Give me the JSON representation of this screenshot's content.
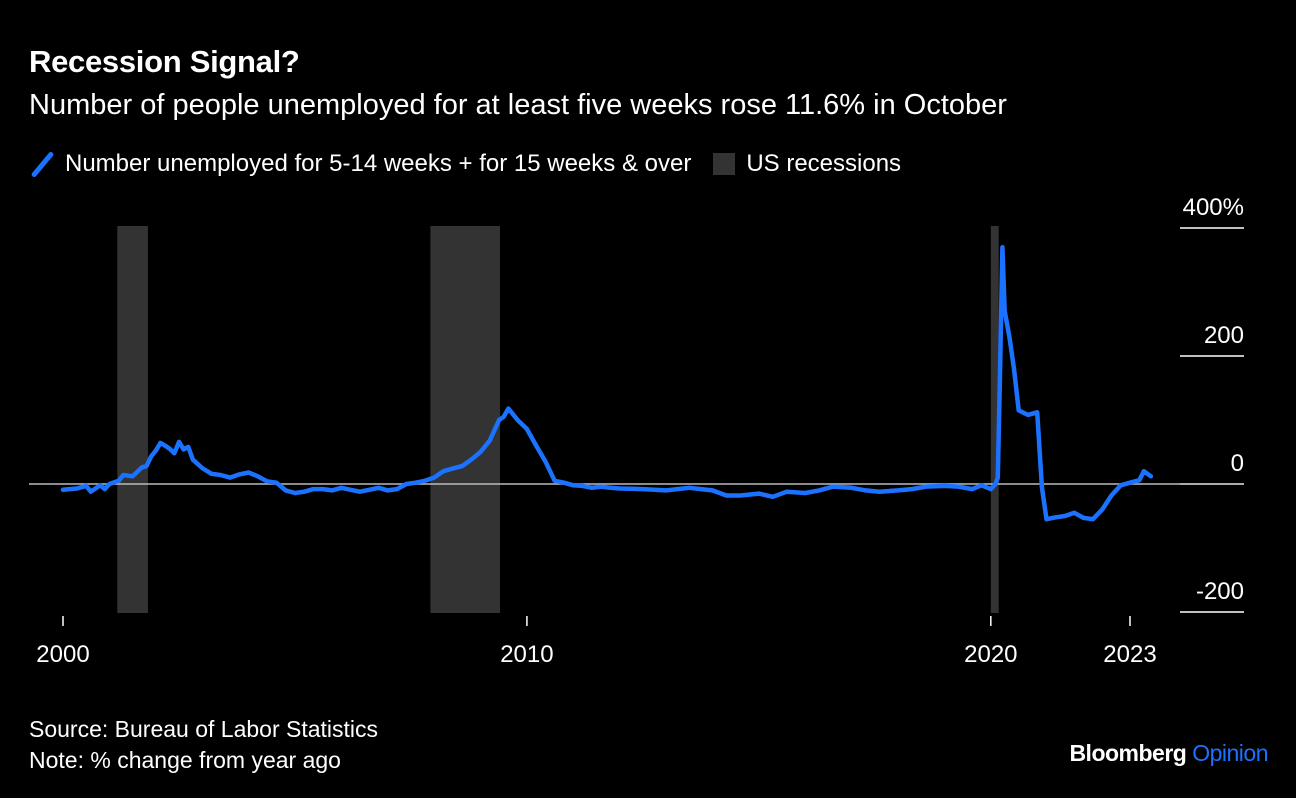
{
  "title": "Recession Signal?",
  "subtitle": "Number of people unemployed for at least five weeks rose 11.6% in October",
  "legend": {
    "series_label": "Number unemployed for 5-14 weeks + for 15 weeks & over",
    "recession_label": "US recessions"
  },
  "footer": {
    "source": "Source: Bureau of Labor Statistics",
    "note": "Note: % change from year ago"
  },
  "brand": {
    "name": "Bloomberg",
    "product": "Opinion"
  },
  "colors": {
    "background": "#000000",
    "series": "#1a72ff",
    "recession": "#333333",
    "zero_line": "#bbbbbb",
    "text": "#ffffff",
    "brand_accent": "#1a72ff"
  },
  "chart_data": {
    "type": "line",
    "title": "Recession Signal?",
    "subtitle": "Number of people unemployed for at least five weeks rose 11.6% in October",
    "xlabel": "",
    "ylabel": "",
    "xlim": [
      2000.0,
      2023.0
    ],
    "ylim": [
      -200,
      400
    ],
    "x_ticks": [
      {
        "value": 2000,
        "label": "2000"
      },
      {
        "value": 2010,
        "label": "2010"
      },
      {
        "value": 2020,
        "label": "2020"
      },
      {
        "value": 2023,
        "label": "2023"
      }
    ],
    "y_ticks": [
      {
        "value": 400,
        "label": "400%"
      },
      {
        "value": 200,
        "label": "200"
      },
      {
        "value": 0,
        "label": "0"
      },
      {
        "value": -200,
        "label": "-200"
      }
    ],
    "grid": false,
    "y_axis_position": "right",
    "legend_position": "top-left",
    "recessions": [
      {
        "start": 2001.17,
        "end": 2001.83
      },
      {
        "start": 2007.92,
        "end": 2009.42
      },
      {
        "start": 2020.0,
        "end": 2020.17
      }
    ],
    "series": [
      {
        "name": "Number unemployed for 5-14 weeks + for 15 weeks & over",
        "color": "#1a72ff",
        "points": [
          [
            2000.0,
            -9
          ],
          [
            2000.3,
            -7
          ],
          [
            2000.5,
            -3
          ],
          [
            2000.6,
            -12
          ],
          [
            2000.8,
            -2
          ],
          [
            2000.9,
            -8
          ],
          [
            2001.0,
            0
          ],
          [
            2001.2,
            5
          ],
          [
            2001.3,
            14
          ],
          [
            2001.5,
            12
          ],
          [
            2001.7,
            26
          ],
          [
            2001.8,
            28
          ],
          [
            2001.9,
            43
          ],
          [
            2002.0,
            52
          ],
          [
            2002.1,
            64
          ],
          [
            2002.2,
            60
          ],
          [
            2002.3,
            55
          ],
          [
            2002.4,
            48
          ],
          [
            2002.5,
            66
          ],
          [
            2002.6,
            54
          ],
          [
            2002.7,
            58
          ],
          [
            2002.8,
            38
          ],
          [
            2003.0,
            25
          ],
          [
            2003.2,
            16
          ],
          [
            2003.4,
            14
          ],
          [
            2003.6,
            10
          ],
          [
            2003.8,
            15
          ],
          [
            2004.0,
            18
          ],
          [
            2004.2,
            12
          ],
          [
            2004.4,
            4
          ],
          [
            2004.6,
            2
          ],
          [
            2004.8,
            -10
          ],
          [
            2005.0,
            -14
          ],
          [
            2005.2,
            -12
          ],
          [
            2005.4,
            -8
          ],
          [
            2005.6,
            -8
          ],
          [
            2005.8,
            -10
          ],
          [
            2006.0,
            -6
          ],
          [
            2006.2,
            -9
          ],
          [
            2006.4,
            -12
          ],
          [
            2006.6,
            -9
          ],
          [
            2006.8,
            -6
          ],
          [
            2007.0,
            -10
          ],
          [
            2007.2,
            -8
          ],
          [
            2007.4,
            0
          ],
          [
            2007.6,
            2
          ],
          [
            2007.8,
            5
          ],
          [
            2008.0,
            10
          ],
          [
            2008.2,
            20
          ],
          [
            2008.4,
            24
          ],
          [
            2008.6,
            28
          ],
          [
            2008.8,
            38
          ],
          [
            2009.0,
            50
          ],
          [
            2009.2,
            68
          ],
          [
            2009.4,
            100
          ],
          [
            2009.5,
            105
          ],
          [
            2009.6,
            118
          ],
          [
            2009.8,
            100
          ],
          [
            2010.0,
            86
          ],
          [
            2010.2,
            60
          ],
          [
            2010.4,
            35
          ],
          [
            2010.6,
            5
          ],
          [
            2010.8,
            2
          ],
          [
            2011.0,
            -2
          ],
          [
            2011.2,
            -3
          ],
          [
            2011.4,
            -6
          ],
          [
            2011.6,
            -4
          ],
          [
            2011.8,
            -6
          ],
          [
            2012.0,
            -7
          ],
          [
            2012.5,
            -8
          ],
          [
            2013.0,
            -10
          ],
          [
            2013.5,
            -6
          ],
          [
            2014.0,
            -10
          ],
          [
            2014.3,
            -18
          ],
          [
            2014.6,
            -18
          ],
          [
            2015.0,
            -15
          ],
          [
            2015.3,
            -20
          ],
          [
            2015.6,
            -12
          ],
          [
            2016.0,
            -14
          ],
          [
            2016.3,
            -10
          ],
          [
            2016.6,
            -4
          ],
          [
            2017.0,
            -6
          ],
          [
            2017.3,
            -10
          ],
          [
            2017.6,
            -12
          ],
          [
            2018.0,
            -10
          ],
          [
            2018.3,
            -8
          ],
          [
            2018.6,
            -4
          ],
          [
            2019.0,
            -3
          ],
          [
            2019.3,
            -4
          ],
          [
            2019.6,
            -8
          ],
          [
            2019.8,
            -2
          ],
          [
            2020.0,
            -8
          ],
          [
            2020.1,
            0
          ],
          [
            2020.15,
            10
          ],
          [
            2020.2,
            180
          ],
          [
            2020.25,
            370
          ],
          [
            2020.3,
            270
          ],
          [
            2020.4,
            230
          ],
          [
            2020.5,
            180
          ],
          [
            2020.6,
            115
          ],
          [
            2020.8,
            108
          ],
          [
            2021.0,
            112
          ],
          [
            2021.1,
            -5
          ],
          [
            2021.2,
            -55
          ],
          [
            2021.4,
            -52
          ],
          [
            2021.6,
            -50
          ],
          [
            2021.8,
            -45
          ],
          [
            2022.0,
            -53
          ],
          [
            2022.2,
            -55
          ],
          [
            2022.4,
            -40
          ],
          [
            2022.6,
            -18
          ],
          [
            2022.8,
            -2
          ],
          [
            2023.0,
            2
          ],
          [
            2023.2,
            6
          ],
          [
            2023.3,
            20
          ],
          [
            2023.45,
            12
          ]
        ]
      }
    ]
  }
}
